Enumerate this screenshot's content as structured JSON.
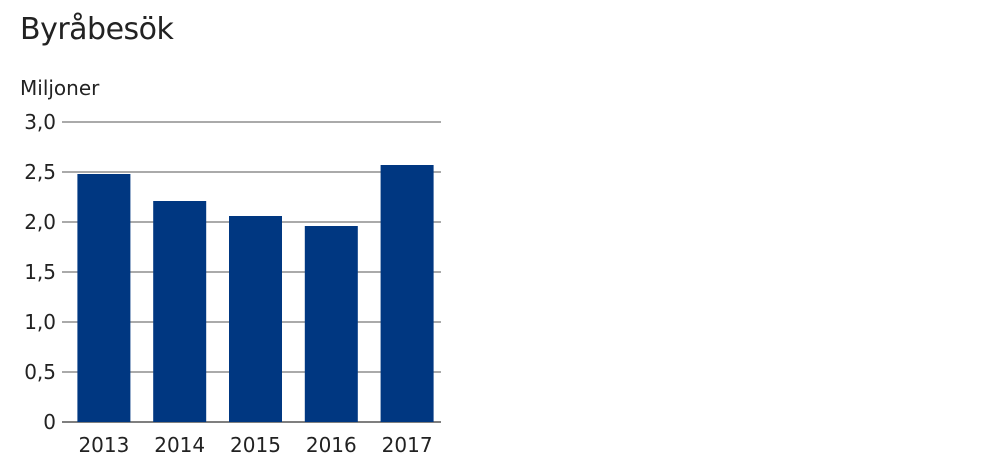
{
  "chart_data": {
    "type": "bar",
    "title": "Byråbesök",
    "ylabel": "Miljoner",
    "xlabel": "",
    "categories": [
      "2013",
      "2014",
      "2015",
      "2016",
      "2017"
    ],
    "values": [
      2.48,
      2.21,
      2.06,
      1.96,
      2.57
    ],
    "ylim": [
      0,
      3.0
    ],
    "yticks": [
      {
        "value": 0,
        "label": "0"
      },
      {
        "value": 0.5,
        "label": "0,5"
      },
      {
        "value": 1.0,
        "label": "1,0"
      },
      {
        "value": 1.5,
        "label": "1,5"
      },
      {
        "value": 2.0,
        "label": "2,0"
      },
      {
        "value": 2.5,
        "label": "2,5"
      },
      {
        "value": 3.0,
        "label": "3,0"
      }
    ],
    "grid": true,
    "legend": "none",
    "bar_color": "#003781",
    "grid_color": "#555555"
  }
}
